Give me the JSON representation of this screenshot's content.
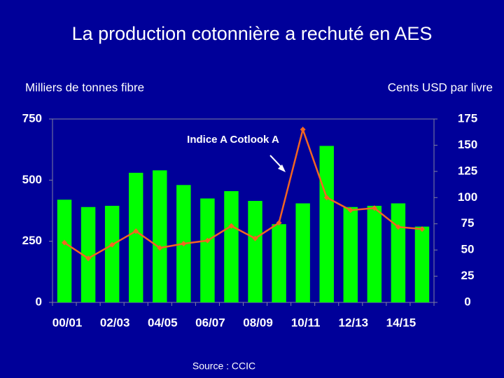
{
  "chart_data": {
    "type": "bar",
    "title": "La production cotonnière a rechuté en AES",
    "y_label": "Milliers de tonnes fibre",
    "y2_label": "Cents USD par livre",
    "annotation": "Indice A Cotlook A",
    "source": "Source : CCIC",
    "categories": [
      "00/01",
      null,
      "02/03",
      null,
      "04/05",
      null,
      "06/07",
      null,
      "08/09",
      null,
      "10/11",
      null,
      "12/13",
      null,
      "14/15",
      null
    ],
    "series": [
      {
        "name": "Production",
        "type": "bar",
        "color": "#00ff00",
        "axis": "y",
        "values": [
          420,
          390,
          395,
          530,
          540,
          480,
          425,
          455,
          415,
          320,
          405,
          640,
          390,
          395,
          405,
          310
        ]
      },
      {
        "name": "Indice A Cotlook A",
        "type": "line",
        "color": "#f26522",
        "axis": "y2",
        "values": [
          57,
          42,
          55,
          68,
          52,
          56,
          59,
          73,
          61,
          76,
          165,
          100,
          88,
          90,
          72,
          70
        ]
      }
    ],
    "ylim": [
      0,
      750
    ],
    "yticks": [
      0,
      250,
      500,
      750
    ],
    "y2lim": [
      0,
      175
    ],
    "y2ticks": [
      0,
      25,
      50,
      75,
      100,
      125,
      150,
      175
    ]
  }
}
